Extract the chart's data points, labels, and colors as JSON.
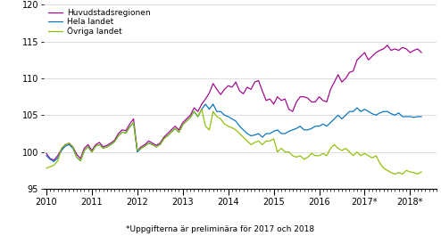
{
  "footnote": "*Uppgifterna är preliminära för 2017 och 2018",
  "legend_labels": [
    "Huvudstadsregionen",
    "Hela landet",
    "Övriga landet"
  ],
  "colors": [
    "#a0008c",
    "#0070c0",
    "#8cbe00"
  ],
  "ylim": [
    95,
    120
  ],
  "yticks": [
    95,
    100,
    105,
    110,
    115,
    120
  ],
  "xlabel_years": [
    "2010",
    "2011",
    "2012",
    "2013",
    "2014",
    "2015",
    "2016",
    "2017*",
    "2018*"
  ],
  "year_positions": [
    2010,
    2011,
    2012,
    2013,
    2014,
    2015,
    2016,
    2017,
    2018
  ],
  "n_months": 100,
  "huvudstad": [
    99.8,
    99.1,
    98.9,
    99.5,
    100.4,
    101.0,
    101.2,
    100.7,
    99.7,
    99.1,
    100.5,
    101.0,
    100.2,
    101.0,
    101.3,
    100.7,
    100.9,
    101.2,
    101.6,
    102.5,
    103.0,
    102.9,
    103.8,
    104.5,
    100.2,
    100.7,
    101.0,
    101.5,
    101.2,
    100.9,
    101.2,
    102.0,
    102.5,
    103.0,
    103.5,
    103.0,
    104.0,
    104.5,
    105.0,
    106.0,
    105.5,
    106.5,
    107.2,
    108.0,
    109.3,
    108.5,
    107.8,
    108.5,
    109.0,
    108.8,
    109.5,
    108.3,
    107.9,
    108.8,
    108.5,
    109.5,
    109.7,
    108.3,
    107.0,
    107.2,
    106.5,
    107.5,
    107.0,
    107.2,
    105.8,
    105.5,
    106.8,
    107.5,
    107.5,
    107.3,
    106.8,
    106.8,
    107.5,
    107.0,
    106.8,
    108.5,
    109.5,
    110.5,
    109.5,
    110.0,
    110.8,
    111.0,
    112.5,
    113.0,
    113.5,
    112.5,
    113.0,
    113.5,
    113.8,
    114.0,
    114.5,
    113.8,
    114.0,
    113.8,
    114.2,
    114.0,
    113.5,
    113.8,
    114.0,
    113.5
  ],
  "hela_landet": [
    99.5,
    99.0,
    98.7,
    99.2,
    100.2,
    100.8,
    101.0,
    100.5,
    99.3,
    98.8,
    100.2,
    100.7,
    100.0,
    100.8,
    101.0,
    100.5,
    100.7,
    101.0,
    101.4,
    102.2,
    102.7,
    102.6,
    103.4,
    104.0,
    100.0,
    100.5,
    100.8,
    101.2,
    101.0,
    100.7,
    101.0,
    101.8,
    102.2,
    102.7,
    103.2,
    102.7,
    103.7,
    104.2,
    104.7,
    105.5,
    104.8,
    105.8,
    106.5,
    105.8,
    106.5,
    105.5,
    105.5,
    105.0,
    104.8,
    104.5,
    104.2,
    103.5,
    103.0,
    102.5,
    102.2,
    102.3,
    102.5,
    102.0,
    102.5,
    102.5,
    102.8,
    103.0,
    102.5,
    102.5,
    102.8,
    103.0,
    103.2,
    103.5,
    103.0,
    103.0,
    103.2,
    103.5,
    103.5,
    103.8,
    103.5,
    104.0,
    104.5,
    105.0,
    104.5,
    105.0,
    105.5,
    105.5,
    106.0,
    105.5,
    105.8,
    105.5,
    105.2,
    105.0,
    105.3,
    105.5,
    105.5,
    105.2,
    105.0,
    105.3,
    104.8,
    104.8,
    104.8,
    104.7,
    104.8,
    104.8
  ],
  "ovriga_landet": [
    97.8,
    98.0,
    98.2,
    98.8,
    100.5,
    101.0,
    101.2,
    100.7,
    99.3,
    98.8,
    100.2,
    100.7,
    100.0,
    100.8,
    101.0,
    100.5,
    100.7,
    101.0,
    101.4,
    102.2,
    102.7,
    102.6,
    103.4,
    104.0,
    100.2,
    100.5,
    100.8,
    101.2,
    101.0,
    100.7,
    101.0,
    101.8,
    102.2,
    102.7,
    103.2,
    102.7,
    103.7,
    104.2,
    104.7,
    105.5,
    104.8,
    105.8,
    103.5,
    103.0,
    105.5,
    104.8,
    104.5,
    103.8,
    103.5,
    103.3,
    103.0,
    102.5,
    102.0,
    101.5,
    101.0,
    101.3,
    101.5,
    101.0,
    101.5,
    101.5,
    101.8,
    100.0,
    100.5,
    100.0,
    100.0,
    99.5,
    99.3,
    99.5,
    99.0,
    99.3,
    99.8,
    99.5,
    99.5,
    99.8,
    99.5,
    100.5,
    101.0,
    100.5,
    100.2,
    100.5,
    100.0,
    99.5,
    100.0,
    99.5,
    99.8,
    99.5,
    99.2,
    99.5,
    98.5,
    97.8,
    97.5,
    97.2,
    97.0,
    97.2,
    97.0,
    97.5,
    97.3,
    97.2,
    97.0,
    97.3
  ]
}
